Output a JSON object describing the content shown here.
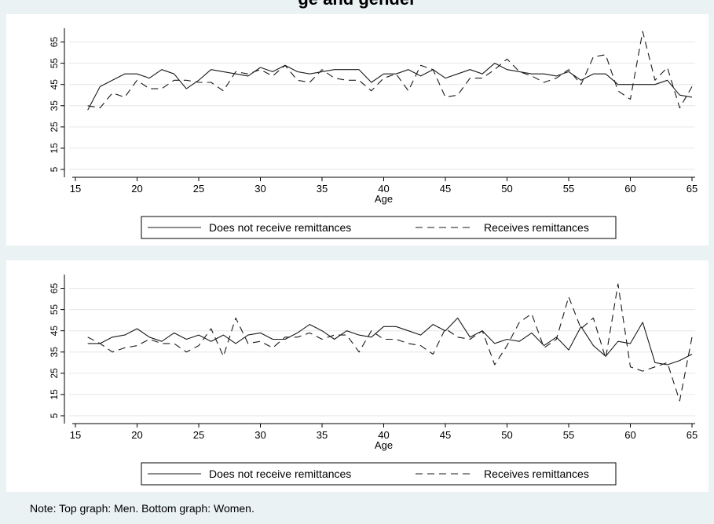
{
  "title": "ge and gender",
  "note": "Note: Top graph: Men. Bottom graph: Women.",
  "chart_data": [
    {
      "type": "line",
      "xlabel": "Age",
      "xlim": [
        15,
        65
      ],
      "ylim": [
        5,
        70
      ],
      "xticks": [
        15,
        20,
        25,
        30,
        35,
        40,
        45,
        50,
        55,
        60,
        65
      ],
      "yticks": [
        5,
        15,
        25,
        35,
        45,
        55,
        65
      ],
      "x": [
        16,
        17,
        18,
        19,
        20,
        21,
        22,
        23,
        24,
        25,
        26,
        27,
        28,
        29,
        30,
        31,
        32,
        33,
        34,
        35,
        36,
        37,
        38,
        39,
        40,
        41,
        42,
        43,
        44,
        45,
        46,
        47,
        48,
        49,
        50,
        51,
        52,
        53,
        54,
        55,
        56,
        57,
        58,
        59,
        60,
        61,
        62,
        63,
        64,
        65
      ],
      "series": [
        {
          "name": "Does not receive remittances",
          "values": [
            33,
            44,
            47,
            50,
            50,
            48,
            52,
            50,
            43,
            47,
            52,
            51,
            50,
            49,
            53,
            51,
            54,
            51,
            50,
            51,
            52,
            52,
            52,
            46,
            50,
            50,
            52,
            49,
            52,
            48,
            50,
            52,
            50,
            55,
            52,
            51,
            50,
            50,
            49,
            51,
            47,
            50,
            50,
            45,
            45,
            45,
            45,
            47,
            40,
            39
          ]
        },
        {
          "name": "Receives remittances",
          "values": [
            35,
            34,
            41,
            39,
            47,
            43,
            43,
            47,
            47,
            46,
            46,
            42,
            51,
            50,
            52,
            49,
            54,
            47,
            46,
            52,
            48,
            47,
            47,
            42,
            48,
            50,
            42,
            54,
            52,
            39,
            40,
            48,
            48,
            52,
            57,
            51,
            49,
            46,
            48,
            52,
            45,
            58,
            59,
            42,
            38,
            70,
            47,
            53,
            34,
            44
          ]
        }
      ]
    },
    {
      "type": "line",
      "xlabel": "Age",
      "xlim": [
        15,
        65
      ],
      "ylim": [
        5,
        70
      ],
      "xticks": [
        15,
        20,
        25,
        30,
        35,
        40,
        45,
        50,
        55,
        60,
        65
      ],
      "yticks": [
        5,
        15,
        25,
        35,
        45,
        55,
        65
      ],
      "x": [
        16,
        17,
        18,
        19,
        20,
        21,
        22,
        23,
        24,
        25,
        26,
        27,
        28,
        29,
        30,
        31,
        32,
        33,
        34,
        35,
        36,
        37,
        38,
        39,
        40,
        41,
        42,
        43,
        44,
        45,
        46,
        47,
        48,
        49,
        50,
        51,
        52,
        53,
        54,
        55,
        56,
        57,
        58,
        59,
        60,
        61,
        62,
        63,
        64,
        65
      ],
      "series": [
        {
          "name": "Does not receive remittances",
          "values": [
            39,
            39,
            42,
            43,
            46,
            42,
            40,
            44,
            41,
            43,
            40,
            43,
            39,
            43,
            44,
            41,
            41,
            44,
            48,
            45,
            41,
            45,
            43,
            42,
            47,
            47,
            45,
            43,
            48,
            45,
            51,
            42,
            45,
            39,
            41,
            40,
            44,
            38,
            42,
            36,
            47,
            38,
            33,
            40,
            39,
            49,
            30,
            29,
            31,
            34
          ]
        },
        {
          "name": "Receives remittances",
          "values": [
            42,
            39,
            35,
            37,
            38,
            41,
            39,
            39,
            35,
            38,
            46,
            33,
            51,
            39,
            40,
            37,
            42,
            42,
            44,
            41,
            43,
            43,
            35,
            45,
            41,
            41,
            39,
            38,
            34,
            46,
            42,
            41,
            45,
            29,
            38,
            49,
            53,
            37,
            41,
            61,
            46,
            51,
            32,
            67,
            28,
            26,
            28,
            30,
            12,
            42
          ]
        }
      ]
    }
  ],
  "legend": {
    "items": [
      "Does not receive remittances",
      "Receives remittances"
    ]
  }
}
